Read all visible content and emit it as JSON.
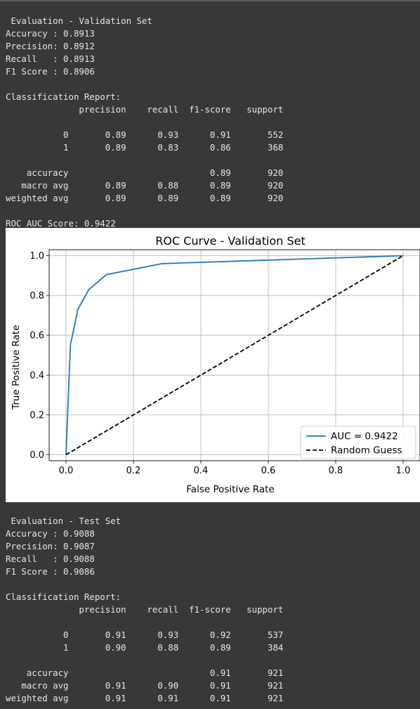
{
  "validation": {
    "text": " Evaluation - Validation Set\nAccuracy : 0.8913\nPrecision: 0.8912\nRecall   : 0.8913\nF1 Score : 0.8906\n\nClassification Report:\n              precision    recall  f1-score   support\n\n           0       0.89      0.93      0.91       552\n           1       0.89      0.83      0.86       368\n\n    accuracy                           0.89       920\n   macro avg       0.89      0.88      0.89       920\nweighted avg       0.89      0.89      0.89       920\n\nROC AUC Score: 0.9422"
  },
  "test": {
    "text": " Evaluation - Test Set\nAccuracy : 0.9088\nPrecision: 0.9087\nRecall   : 0.9088\nF1 Score : 0.9086\n\nClassification Report:\n              precision    recall  f1-score   support\n\n           0       0.91      0.93      0.92       537\n           1       0.90      0.88      0.89       384\n\n    accuracy                           0.91       921\n   macro avg       0.91      0.90      0.91       921\nweighted avg       0.91      0.91      0.91       921"
  },
  "chart_data": {
    "type": "line",
    "title": "ROC Curve - Validation Set",
    "xlabel": "False Positive Rate",
    "ylabel": "True Positive Rate",
    "xlim": [
      -0.05,
      1.05
    ],
    "ylim": [
      -0.03,
      1.03
    ],
    "xticks": [
      "0.0",
      "0.2",
      "0.4",
      "0.6",
      "0.8",
      "1.0"
    ],
    "yticks": [
      "0.0",
      "0.2",
      "0.4",
      "0.6",
      "0.8",
      "1.0"
    ],
    "grid": true,
    "legend_position": "lower-right",
    "series": [
      {
        "name": "AUC = 0.9422",
        "color": "#1f77b4",
        "style": "solid",
        "x": [
          0.0,
          0.013,
          0.035,
          0.068,
          0.12,
          0.285,
          1.0
        ],
        "y": [
          0.0,
          0.55,
          0.73,
          0.83,
          0.905,
          0.96,
          1.0
        ]
      },
      {
        "name": "Random Guess",
        "color": "#000000",
        "style": "dashed",
        "x": [
          0.0,
          1.0
        ],
        "y": [
          0.0,
          1.0
        ]
      }
    ]
  }
}
